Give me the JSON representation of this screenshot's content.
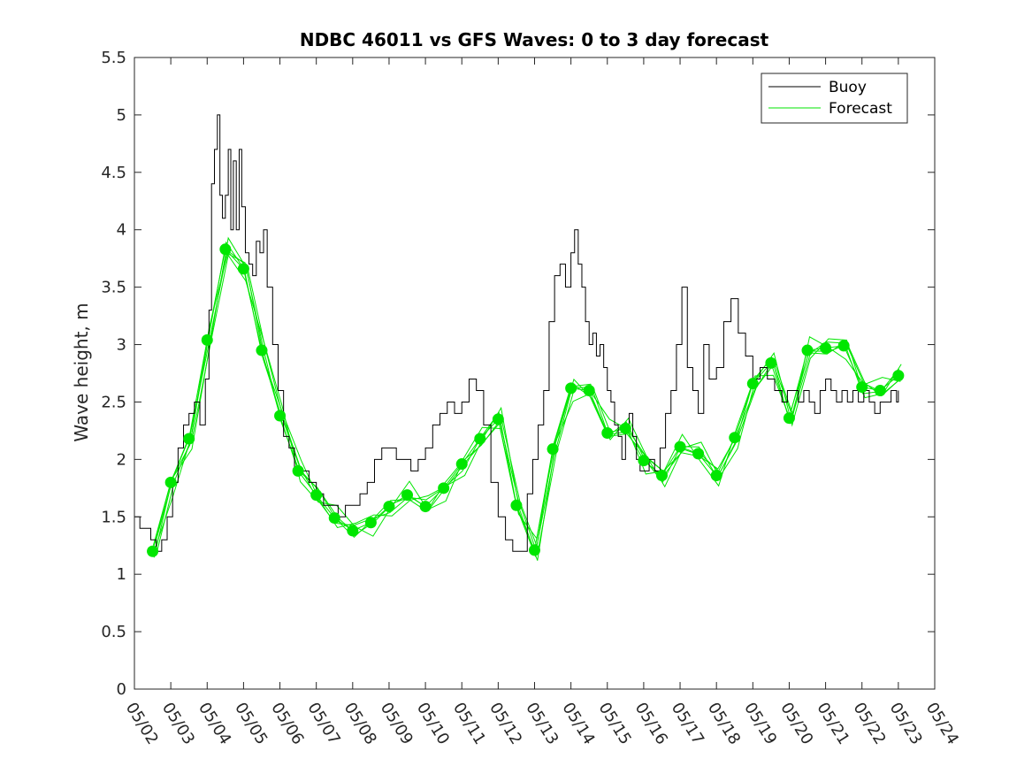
{
  "chart_data": {
    "type": "line",
    "title": "NDBC 46011 vs GFS Waves: 0 to 3 day forecast",
    "xlabel": "",
    "ylabel": "Wave height, m",
    "xlim": [
      "05/02",
      "05/24"
    ],
    "ylim": [
      0,
      5.5
    ],
    "x_ticks": [
      "05/02",
      "05/03",
      "05/04",
      "05/05",
      "05/06",
      "05/07",
      "05/08",
      "05/09",
      "05/10",
      "05/11",
      "05/12",
      "05/13",
      "05/14",
      "05/15",
      "05/16",
      "05/17",
      "05/18",
      "05/19",
      "05/20",
      "05/21",
      "05/22",
      "05/23",
      "05/24"
    ],
    "y_ticks": [
      "0",
      "0.5",
      "1",
      "1.5",
      "2",
      "2.5",
      "3",
      "3.5",
      "4",
      "4.5",
      "5",
      "5.5"
    ],
    "grid": false,
    "legend_position": "top-right",
    "colors": {
      "buoy": "#000000",
      "forecast": "#00e600",
      "axes": "#262626"
    },
    "legend": [
      {
        "label": "Buoy",
        "color": "#000000"
      },
      {
        "label": "Forecast",
        "color": "#00e600"
      }
    ],
    "series": [
      {
        "name": "Buoy",
        "x_days": [
          0,
          0.15,
          0.3,
          0.45,
          0.6,
          0.75,
          0.9,
          1.05,
          1.2,
          1.35,
          1.5,
          1.65,
          1.8,
          1.95,
          2.05,
          2.12,
          2.2,
          2.28,
          2.35,
          2.42,
          2.5,
          2.58,
          2.65,
          2.72,
          2.8,
          2.88,
          2.95,
          3.05,
          3.15,
          3.25,
          3.35,
          3.45,
          3.55,
          3.65,
          3.8,
          3.95,
          4.1,
          4.25,
          4.4,
          4.6,
          4.8,
          5.0,
          5.2,
          5.4,
          5.6,
          5.8,
          6.0,
          6.2,
          6.4,
          6.6,
          6.8,
          7.0,
          7.2,
          7.4,
          7.6,
          7.8,
          8.0,
          8.2,
          8.4,
          8.6,
          8.8,
          9.0,
          9.2,
          9.4,
          9.6,
          9.8,
          10.0,
          10.2,
          10.4,
          10.6,
          10.8,
          10.95,
          11.1,
          11.25,
          11.4,
          11.55,
          11.7,
          11.85,
          12.0,
          12.1,
          12.2,
          12.3,
          12.4,
          12.5,
          12.6,
          12.7,
          12.8,
          12.9,
          13.0,
          13.1,
          13.2,
          13.3,
          13.4,
          13.5,
          13.6,
          13.7,
          13.8,
          13.9,
          14.0,
          14.15,
          14.3,
          14.45,
          14.6,
          14.75,
          14.9,
          15.05,
          15.2,
          15.35,
          15.5,
          15.65,
          15.8,
          16.0,
          16.2,
          16.4,
          16.6,
          16.8,
          17.0,
          17.2,
          17.4,
          17.6,
          17.8,
          17.95,
          18.1,
          18.25,
          18.4,
          18.55,
          18.7,
          18.85,
          19.0,
          19.15,
          19.3,
          19.45,
          19.6,
          19.75,
          19.9,
          20.05,
          20.2,
          20.35,
          20.5,
          20.65,
          20.8,
          20.95,
          21.0
        ],
        "values": [
          1.5,
          1.4,
          1.4,
          1.3,
          1.2,
          1.3,
          1.5,
          1.8,
          2.1,
          2.3,
          2.4,
          2.5,
          2.3,
          2.7,
          3.3,
          4.4,
          4.7,
          5.0,
          4.3,
          4.1,
          4.3,
          4.7,
          4.0,
          4.6,
          4.0,
          4.7,
          4.2,
          3.8,
          3.7,
          3.6,
          3.9,
          3.8,
          4.0,
          3.5,
          3.0,
          2.6,
          2.2,
          2.1,
          1.9,
          1.9,
          1.8,
          1.7,
          1.6,
          1.6,
          1.5,
          1.6,
          1.6,
          1.7,
          1.8,
          2.0,
          2.1,
          2.1,
          2.0,
          2.0,
          1.9,
          2.0,
          2.1,
          2.3,
          2.4,
          2.5,
          2.4,
          2.5,
          2.7,
          2.6,
          2.3,
          1.8,
          1.5,
          1.3,
          1.2,
          1.2,
          1.7,
          2.0,
          2.3,
          2.6,
          3.2,
          3.6,
          3.7,
          3.5,
          3.8,
          4.0,
          3.7,
          3.5,
          3.2,
          3.0,
          3.1,
          2.9,
          3.0,
          2.8,
          2.6,
          2.5,
          2.3,
          2.2,
          2.0,
          2.3,
          2.4,
          2.2,
          2.0,
          1.9,
          1.9,
          2.0,
          1.9,
          2.1,
          2.4,
          2.6,
          3.0,
          3.5,
          2.8,
          2.6,
          2.4,
          3.0,
          2.7,
          2.8,
          3.2,
          3.4,
          3.1,
          2.9,
          2.7,
          2.8,
          2.7,
          2.6,
          2.5,
          2.6,
          2.6,
          2.5,
          2.6,
          2.5,
          2.4,
          2.6,
          2.7,
          2.6,
          2.5,
          2.6,
          2.5,
          2.6,
          2.5,
          2.6,
          2.5,
          2.4,
          2.5,
          2.5,
          2.6,
          2.5,
          2.6
        ]
      },
      {
        "name": "Forecast",
        "x_days": [
          0.5,
          1.0,
          1.5,
          2.0,
          2.5,
          3.0,
          3.5,
          4.0,
          4.5,
          5.0,
          5.5,
          6.0,
          6.5,
          7.0,
          7.5,
          8.0,
          8.5,
          9.0,
          9.5,
          10.0,
          10.5,
          11.0,
          11.5,
          12.0,
          12.5,
          13.0,
          13.5,
          14.0,
          14.5,
          15.0,
          15.5,
          16.0,
          16.5,
          17.0,
          17.5,
          18.0,
          18.5,
          19.0,
          19.5,
          20.0,
          20.5,
          21.0
        ],
        "values": [
          1.2,
          1.8,
          2.18,
          3.04,
          3.83,
          3.66,
          2.95,
          2.38,
          1.9,
          1.69,
          1.49,
          1.38,
          1.45,
          1.59,
          1.69,
          1.59,
          1.75,
          1.96,
          2.18,
          2.35,
          1.6,
          1.21,
          2.09,
          2.62,
          2.6,
          2.23,
          2.27,
          1.99,
          1.86,
          2.11,
          2.05,
          1.86,
          2.19,
          2.66,
          2.84,
          2.36,
          2.95,
          2.97,
          2.99,
          2.63,
          2.6,
          2.73
        ]
      }
    ]
  }
}
